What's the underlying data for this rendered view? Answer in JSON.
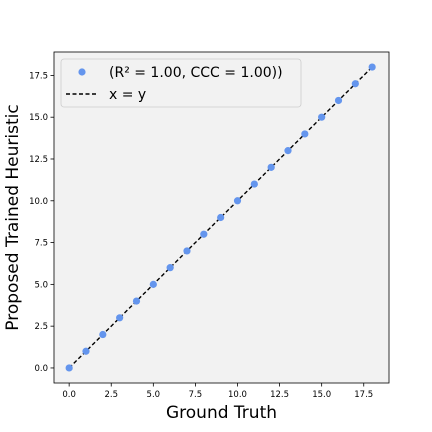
{
  "chart_data": {
    "type": "scatter",
    "title": "",
    "xlabel": "Ground Truth",
    "ylabel": "Proposed Trained Heuristic",
    "xlim": [
      -0.9,
      19.0
    ],
    "ylim": [
      -0.9,
      18.9
    ],
    "xticks": [
      0.0,
      2.5,
      5.0,
      7.5,
      10.0,
      12.5,
      15.0,
      17.5
    ],
    "yticks": [
      0.0,
      2.5,
      5.0,
      7.5,
      10.0,
      12.5,
      15.0,
      17.5
    ],
    "xtick_labels": [
      "0.0",
      "2.5",
      "5.0",
      "7.5",
      "10.0",
      "12.5",
      "15.0",
      "17.5"
    ],
    "ytick_labels": [
      "0.0",
      "2.5",
      "5.0",
      "7.5",
      "10.0",
      "12.5",
      "15.0",
      "17.5"
    ],
    "grid": false,
    "legend_position": "top-left",
    "background_color": "#f2f2f2",
    "series": [
      {
        "name": "(R² = 1.00, CCC = 1.00))",
        "kind": "scatter",
        "color": "#6495ed",
        "x": [
          0,
          1,
          2,
          3,
          4,
          5,
          6,
          7,
          8,
          9,
          10,
          11,
          12,
          13,
          14,
          15,
          16,
          17,
          18
        ],
        "y": [
          0,
          1,
          2,
          3,
          4,
          5,
          6,
          7,
          8,
          9,
          10,
          11,
          12,
          13,
          14,
          15,
          16,
          17,
          18
        ]
      },
      {
        "name": "x = y",
        "kind": "line",
        "style": "dashed",
        "color": "#000000",
        "x": [
          0,
          18
        ],
        "y": [
          0,
          18
        ]
      }
    ]
  }
}
